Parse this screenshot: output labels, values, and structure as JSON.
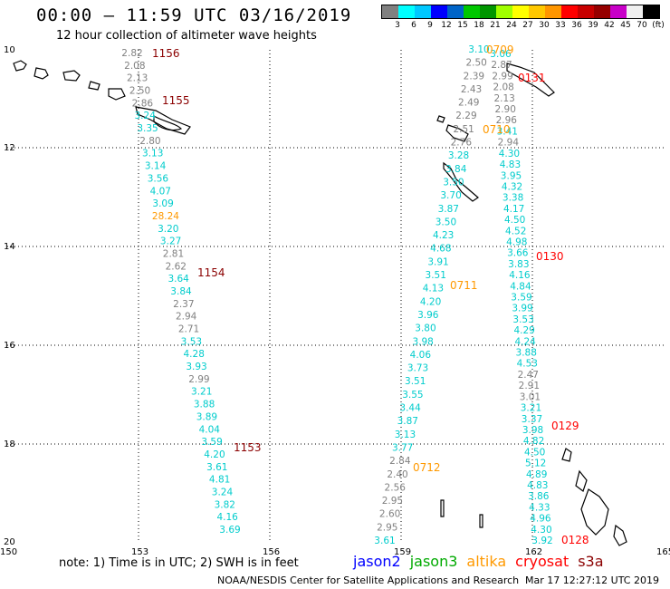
{
  "title": "00:00 – 11:59 UTC 03/16/2019",
  "subtitle": "12 hour collection of altimeter wave heights",
  "legend": {
    "colors": [
      "#808080",
      "#00ffff",
      "#00c8ff",
      "#0000ff",
      "#0064c8",
      "#00c800",
      "#009600",
      "#a0ff00",
      "#ffff00",
      "#ffc800",
      "#ff9600",
      "#ff0000",
      "#c80000",
      "#960000",
      "#c800c8",
      "#f0f0f0",
      "#000000"
    ],
    "labels": [
      "3",
      "6",
      "9",
      "12",
      "15",
      "18",
      "21",
      "24",
      "27",
      "30",
      "33",
      "36",
      "39",
      "42",
      "45",
      "70",
      "(ft)"
    ]
  },
  "axes": {
    "lon_ticks": [
      "150",
      "153",
      "156",
      "159",
      "162",
      "165"
    ],
    "lat_ticks": [
      "10",
      "12",
      "14",
      "16",
      "18",
      "20"
    ]
  },
  "passes": [
    {
      "label": "1156",
      "color": "#8b0000"
    },
    {
      "label": "1155",
      "color": "#8b0000"
    },
    {
      "label": "1154",
      "color": "#8b0000"
    },
    {
      "label": "1153",
      "color": "#8b0000"
    },
    {
      "label": "0709",
      "color": "#ff9900"
    },
    {
      "label": "0131",
      "color": "#ff0000"
    },
    {
      "label": "0710",
      "color": "#ff9900"
    },
    {
      "label": "0130",
      "color": "#ff0000"
    },
    {
      "label": "0711",
      "color": "#ff9900"
    },
    {
      "label": "0712",
      "color": "#ff9900"
    },
    {
      "label": "0129",
      "color": "#ff0000"
    },
    {
      "label": "0128",
      "color": "#ff0000"
    }
  ],
  "tracks": {
    "track_a": {
      "values": [
        "2.82",
        "2.08",
        "2.13",
        "2.50",
        "2.86",
        "3.24",
        "3.35",
        "2.80",
        "3.13",
        "3.14",
        "3.56",
        "4.07",
        "3.09",
        "28.24",
        "3.20",
        "3.27",
        "2.81",
        "2.62",
        "3.64",
        "3.84",
        "2.37",
        "2.94",
        "2.71",
        "3.53",
        "4.28",
        "3.93",
        "2.99",
        "3.21",
        "3.88",
        "3.89",
        "4.04",
        "3.59",
        "4.20",
        "3.61",
        "4.81",
        "3.24",
        "3.82",
        "4.16",
        "3.69"
      ],
      "colors": [
        "#808080",
        "#808080",
        "#808080",
        "#808080",
        "#808080",
        "#00cccc",
        "#00cccc",
        "#808080",
        "#00cccc",
        "#00cccc",
        "#00cccc",
        "#00cccc",
        "#00cccc",
        "#ff9900",
        "#00cccc",
        "#00cccc",
        "#808080",
        "#808080",
        "#00cccc",
        "#00cccc",
        "#808080",
        "#808080",
        "#808080",
        "#00cccc",
        "#00cccc",
        "#00cccc",
        "#808080",
        "#00cccc",
        "#00cccc",
        "#00cccc",
        "#00cccc",
        "#00cccc",
        "#00cccc",
        "#00cccc",
        "#00cccc",
        "#00cccc",
        "#00cccc",
        "#00cccc",
        "#00cccc"
      ]
    },
    "track_b": {
      "values": [
        "3.10",
        "2.50",
        "2.39",
        "2.43",
        "2.49",
        "2.29",
        "2.51",
        "2.76",
        "3.28",
        "3.84",
        "3.50",
        "3.70",
        "3.87",
        "3.50",
        "4.23",
        "4.68",
        "3.91",
        "3.51",
        "4.13",
        "4.20",
        "3.96",
        "3.80",
        "3.98",
        "4.06",
        "3.73",
        "3.51",
        "3.55",
        "3.44",
        "3.87",
        "3.13",
        "3.77",
        "2.84",
        "2.40",
        "2.56",
        "2.95",
        "2.60",
        "2.95",
        "3.61"
      ],
      "colors": [
        "#00cccc",
        "#808080",
        "#808080",
        "#808080",
        "#808080",
        "#808080",
        "#808080",
        "#808080",
        "#00cccc",
        "#00cccc",
        "#00cccc",
        "#00cccc",
        "#00cccc",
        "#00cccc",
        "#00cccc",
        "#00cccc",
        "#00cccc",
        "#00cccc",
        "#00cccc",
        "#00cccc",
        "#00cccc",
        "#00cccc",
        "#00cccc",
        "#00cccc",
        "#00cccc",
        "#00cccc",
        "#00cccc",
        "#00cccc",
        "#00cccc",
        "#00cccc",
        "#00cccc",
        "#808080",
        "#808080",
        "#808080",
        "#808080",
        "#808080",
        "#808080",
        "#00cccc"
      ]
    },
    "track_c": {
      "values": [
        "3.06",
        "2.87",
        "2.99",
        "2.08",
        "2.13",
        "2.90",
        "2.96",
        "3.41",
        "2.94",
        "4.30",
        "4.83",
        "3.95",
        "4.32",
        "3.38",
        "4.17",
        "4.50",
        "4.52",
        "4.98",
        "3.66",
        "3.83",
        "4.16",
        "4.84",
        "3.59",
        "3.99",
        "3.53",
        "4.29",
        "4.24",
        "3.88",
        "4.53",
        "2.47",
        "2.91",
        "3.01",
        "3.21",
        "3.37",
        "3.98",
        "4.82",
        "4.50",
        "5.12",
        "4.89",
        "4.83",
        "3.86",
        "4.33",
        "4.96",
        "4.30",
        "3.92"
      ],
      "colors": [
        "#00cccc",
        "#808080",
        "#808080",
        "#808080",
        "#808080",
        "#808080",
        "#808080",
        "#00cccc",
        "#808080",
        "#00cccc",
        "#00cccc",
        "#00cccc",
        "#00cccc",
        "#00cccc",
        "#00cccc",
        "#00cccc",
        "#00cccc",
        "#00cccc",
        "#00cccc",
        "#00cccc",
        "#00cccc",
        "#00cccc",
        "#00cccc",
        "#00cccc",
        "#00cccc",
        "#00cccc",
        "#00cccc",
        "#00cccc",
        "#00cccc",
        "#808080",
        "#808080",
        "#808080",
        "#00cccc",
        "#00cccc",
        "#00cccc",
        "#00cccc",
        "#00cccc",
        "#00cccc",
        "#00cccc",
        "#00cccc",
        "#00cccc",
        "#00cccc",
        "#00cccc",
        "#00cccc",
        "#00cccc"
      ]
    }
  },
  "note": "note: 1) Time is in UTC; 2) SWH is in feet",
  "satellites": [
    {
      "name": "jason2",
      "color": "#0000ff"
    },
    {
      "name": "jason3",
      "color": "#00aa00"
    },
    {
      "name": "altika",
      "color": "#ff9900"
    },
    {
      "name": "cryosat",
      "color": "#ff0000"
    },
    {
      "name": "s3a",
      "color": "#8b0000"
    }
  ],
  "credit": "NOAA/NESDIS Center for Satellite Applications and Research",
  "timestamp": "Mar 17 12:27:12 UTC 2019"
}
